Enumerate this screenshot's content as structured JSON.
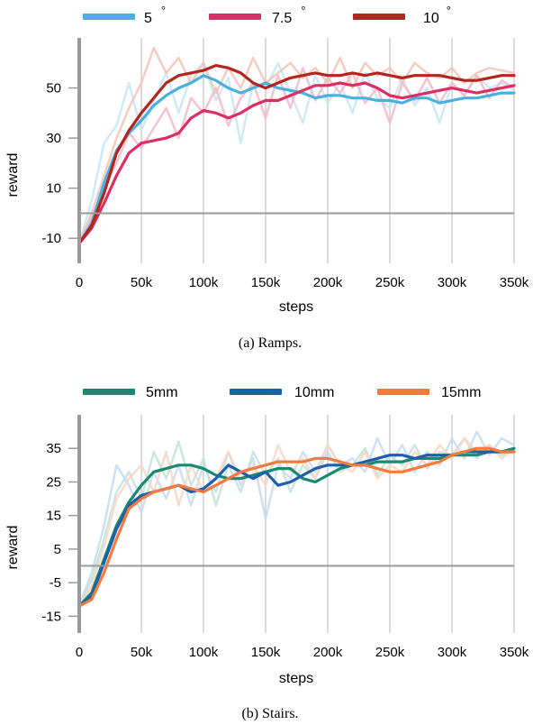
{
  "chart_data": [
    {
      "type": "line",
      "caption": "(a) Ramps.",
      "xlabel": "steps",
      "ylabel": "reward",
      "xlim": [
        0,
        350000
      ],
      "ylim": [
        -20,
        70
      ],
      "x_ticks": [
        0,
        50000,
        100000,
        150000,
        200000,
        250000,
        300000,
        350000
      ],
      "x_tick_labels": [
        "0",
        "50k",
        "100k",
        "150k",
        "200k",
        "250k",
        "300k",
        "350k"
      ],
      "y_ticks": [
        -10,
        10,
        30,
        50
      ],
      "y_tick_labels": [
        "-10",
        "10",
        "30",
        "50"
      ],
      "zero_line": 0,
      "grid": "vertical",
      "legend_position": "top",
      "series": [
        {
          "name": "5",
          "degree_symbol": "°",
          "color": "#4cb0de",
          "raw_color": "#c7e6f6",
          "x": [
            0,
            10000,
            20000,
            30000,
            40000,
            50000,
            60000,
            70000,
            80000,
            90000,
            100000,
            110000,
            120000,
            130000,
            140000,
            150000,
            160000,
            170000,
            180000,
            190000,
            200000,
            210000,
            220000,
            230000,
            240000,
            250000,
            260000,
            270000,
            280000,
            290000,
            300000,
            310000,
            320000,
            330000,
            340000,
            350000
          ],
          "values": [
            -12,
            -4,
            12,
            25,
            32,
            37,
            43,
            47,
            50,
            52,
            55,
            53,
            50,
            48,
            50,
            52,
            50,
            49,
            48,
            46,
            47,
            47,
            46,
            46,
            45,
            45,
            44,
            46,
            46,
            44,
            45,
            46,
            46,
            47,
            48,
            48
          ],
          "raw_values": [
            -12,
            5,
            28,
            35,
            52,
            33,
            45,
            56,
            40,
            55,
            60,
            45,
            54,
            28,
            52,
            50,
            60,
            48,
            36,
            55,
            44,
            52,
            40,
            56,
            46,
            42,
            54,
            43,
            50,
            36,
            52,
            47,
            55,
            50,
            52,
            49
          ]
        },
        {
          "name": "7.5",
          "degree_symbol": "°",
          "color": "#db2f63",
          "raw_color": "#f3b7c9",
          "x": [
            0,
            10000,
            20000,
            30000,
            40000,
            50000,
            60000,
            70000,
            80000,
            90000,
            100000,
            110000,
            120000,
            130000,
            140000,
            150000,
            160000,
            170000,
            180000,
            190000,
            200000,
            210000,
            220000,
            230000,
            240000,
            250000,
            260000,
            270000,
            280000,
            290000,
            300000,
            310000,
            320000,
            330000,
            340000,
            350000
          ],
          "values": [
            -12,
            -6,
            4,
            15,
            24,
            28,
            29,
            30,
            32,
            38,
            41,
            40,
            38,
            40,
            43,
            45,
            45,
            47,
            49,
            51,
            51,
            52,
            51,
            52,
            50,
            47,
            46,
            47,
            48,
            49,
            50,
            49,
            48,
            49,
            50,
            51
          ],
          "raw_values": [
            -12,
            -2,
            10,
            20,
            32,
            26,
            34,
            42,
            30,
            46,
            40,
            50,
            35,
            46,
            52,
            38,
            55,
            42,
            58,
            45,
            54,
            48,
            56,
            44,
            50,
            36,
            52,
            45,
            54,
            44,
            52,
            47,
            55,
            46,
            53,
            50
          ]
        },
        {
          "name": "10",
          "degree_symbol": "°",
          "color": "#b3261e",
          "raw_color": "#f2c3b6",
          "x": [
            0,
            10000,
            20000,
            30000,
            40000,
            50000,
            60000,
            70000,
            80000,
            90000,
            100000,
            110000,
            120000,
            130000,
            140000,
            150000,
            160000,
            170000,
            180000,
            190000,
            200000,
            210000,
            220000,
            230000,
            240000,
            250000,
            260000,
            270000,
            280000,
            290000,
            300000,
            310000,
            320000,
            330000,
            340000,
            350000
          ],
          "values": [
            -12,
            -5,
            8,
            24,
            33,
            40,
            46,
            52,
            55,
            56,
            57,
            59,
            58,
            56,
            52,
            50,
            52,
            54,
            55,
            56,
            55,
            55,
            56,
            55,
            56,
            55,
            54,
            55,
            55,
            55,
            54,
            53,
            53,
            54,
            55,
            55
          ],
          "raw_values": [
            -12,
            0,
            15,
            30,
            42,
            52,
            66,
            56,
            62,
            52,
            60,
            48,
            58,
            50,
            62,
            52,
            56,
            60,
            54,
            58,
            52,
            62,
            50,
            60,
            55,
            58,
            52,
            60,
            56,
            54,
            58,
            52,
            56,
            58,
            57,
            56
          ]
        }
      ]
    },
    {
      "type": "line",
      "caption": "(b) Stairs.",
      "xlabel": "steps",
      "ylabel": "reward",
      "xlim": [
        0,
        350000
      ],
      "ylim": [
        -20,
        45
      ],
      "x_ticks": [
        0,
        50000,
        100000,
        150000,
        200000,
        250000,
        300000,
        350000
      ],
      "x_tick_labels": [
        "0",
        "50k",
        "100k",
        "150k",
        "200k",
        "250k",
        "300k",
        "350k"
      ],
      "y_ticks": [
        -15,
        -5,
        5,
        15,
        25,
        35
      ],
      "y_tick_labels": [
        "-15",
        "-5",
        "5",
        "15",
        "25",
        "35"
      ],
      "zero_line": 0,
      "grid": "vertical",
      "legend_position": "top",
      "series": [
        {
          "name": "5mm",
          "color": "#188a72",
          "raw_color": "#bfe3d9",
          "x": [
            0,
            10000,
            20000,
            30000,
            40000,
            50000,
            60000,
            70000,
            80000,
            90000,
            100000,
            110000,
            120000,
            130000,
            140000,
            150000,
            160000,
            170000,
            180000,
            190000,
            200000,
            210000,
            220000,
            230000,
            240000,
            250000,
            260000,
            270000,
            280000,
            290000,
            300000,
            310000,
            320000,
            330000,
            340000,
            350000
          ],
          "values": [
            -12,
            -8,
            2,
            12,
            19,
            24,
            28,
            29,
            30,
            30,
            29,
            27,
            26,
            26,
            27,
            28,
            29,
            29,
            26,
            25,
            27,
            29,
            30,
            30,
            31,
            31,
            31,
            32,
            32,
            32,
            33,
            33,
            33,
            34,
            34,
            35
          ],
          "raw_values": [
            -12,
            -4,
            8,
            22,
            28,
            20,
            34,
            26,
            37,
            24,
            32,
            18,
            30,
            22,
            34,
            27,
            32,
            22,
            30,
            26,
            34,
            28,
            30,
            35,
            27,
            33,
            30,
            36,
            29,
            34,
            33,
            38,
            32,
            36,
            33,
            35
          ]
        },
        {
          "name": "10mm",
          "color": "#1d5fa8",
          "raw_color": "#c4dcf1",
          "x": [
            0,
            10000,
            20000,
            30000,
            40000,
            50000,
            60000,
            70000,
            80000,
            90000,
            100000,
            110000,
            120000,
            130000,
            140000,
            150000,
            160000,
            170000,
            180000,
            190000,
            200000,
            210000,
            220000,
            230000,
            240000,
            250000,
            260000,
            270000,
            280000,
            290000,
            300000,
            310000,
            320000,
            330000,
            340000,
            350000
          ],
          "values": [
            -12,
            -9,
            1,
            11,
            18,
            21,
            22,
            23,
            24,
            22,
            23,
            26,
            30,
            28,
            26,
            28,
            24,
            25,
            27,
            29,
            30,
            30,
            30,
            31,
            32,
            33,
            33,
            32,
            33,
            33,
            33,
            34,
            34,
            34,
            34,
            34
          ],
          "raw_values": [
            -12,
            -2,
            12,
            30,
            24,
            16,
            28,
            20,
            30,
            18,
            30,
            22,
            34,
            24,
            32,
            14,
            30,
            26,
            34,
            28,
            36,
            30,
            32,
            28,
            38,
            30,
            36,
            28,
            34,
            30,
            38,
            32,
            40,
            33,
            38,
            36
          ]
        },
        {
          "name": "15mm",
          "color": "#f47b3e",
          "raw_color": "#fbd5c4",
          "x": [
            0,
            10000,
            20000,
            30000,
            40000,
            50000,
            60000,
            70000,
            80000,
            90000,
            100000,
            110000,
            120000,
            130000,
            140000,
            150000,
            160000,
            170000,
            180000,
            190000,
            200000,
            210000,
            220000,
            230000,
            240000,
            250000,
            260000,
            270000,
            280000,
            290000,
            300000,
            310000,
            320000,
            330000,
            340000,
            350000
          ],
          "values": [
            -12,
            -10,
            -2,
            8,
            17,
            20,
            22,
            23,
            24,
            23,
            22,
            24,
            26,
            28,
            29,
            30,
            31,
            31,
            31,
            32,
            32,
            31,
            30,
            30,
            29,
            28,
            28,
            29,
            30,
            31,
            33,
            34,
            35,
            35,
            34,
            34
          ],
          "raw_values": [
            -12,
            -6,
            6,
            20,
            26,
            30,
            22,
            34,
            18,
            30,
            22,
            26,
            34,
            26,
            30,
            24,
            36,
            28,
            32,
            26,
            36,
            30,
            28,
            34,
            26,
            30,
            28,
            34,
            30,
            36,
            32,
            38,
            34,
            36,
            32,
            35
          ]
        }
      ]
    }
  ]
}
